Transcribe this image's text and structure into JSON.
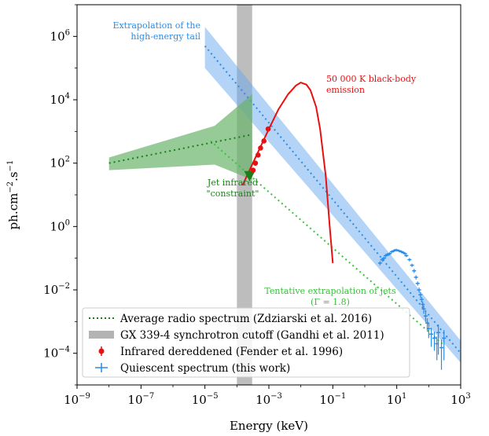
{
  "chart_data": {
    "type": "scatter",
    "xlabel": "Energy (keV)",
    "ylabel_base": "ph.cm",
    "ylabel_exp1": "−2",
    "ylabel_mid": ".s",
    "ylabel_exp2": "−1",
    "x_scale": "log",
    "y_scale": "log",
    "xlim": [
      1e-09,
      1000
    ],
    "ylim": [
      1e-05,
      10000000.0
    ],
    "x_ticks": [
      {
        "exp": -9,
        "base": "10",
        "label": "−9"
      },
      {
        "exp": -7,
        "base": "10",
        "label": "−7"
      },
      {
        "exp": -5,
        "base": "10",
        "label": "−5"
      },
      {
        "exp": -3,
        "base": "10",
        "label": "−3"
      },
      {
        "exp": -1,
        "base": "10",
        "label": "−1"
      },
      {
        "exp": 1,
        "base": "10",
        "label": "1"
      },
      {
        "exp": 3,
        "base": "10",
        "label": "3"
      }
    ],
    "y_ticks": [
      {
        "exp": 6,
        "base": "10",
        "label": "6"
      },
      {
        "exp": 4,
        "base": "10",
        "label": "4"
      },
      {
        "exp": 2,
        "base": "10",
        "label": "2"
      },
      {
        "exp": 0,
        "base": "10",
        "label": "0"
      },
      {
        "exp": -2,
        "base": "10",
        "label": "−2"
      },
      {
        "exp": -4,
        "base": "10",
        "label": "−4"
      }
    ],
    "colors": {
      "radio": "#1a7f1a",
      "radio_band": "#6ab36a",
      "jet_extrap": "#39c339",
      "cutoff": "#999999",
      "ir": "#e81010",
      "quiescent": "#2b8be6",
      "hard_tail_band": "#6aaaf0",
      "annot_blue": "#2b8be6",
      "annot_red": "#e81010",
      "annot_green": "#1a7f1a",
      "annot_lightgreen": "#39c339"
    },
    "synchrotron_cutoff": {
      "x": [
        0.0001,
        0.0003
      ]
    },
    "radio_spectrum": {
      "line": {
        "x": [
          1e-08,
          0.0003
        ],
        "y": [
          100,
          800
        ]
      },
      "band": {
        "x": [
          1e-08,
          2e-05,
          0.0003,
          0.0003,
          2e-05,
          1e-08
        ],
        "y": [
          150,
          1500,
          15000,
          30,
          90,
          60
        ]
      }
    },
    "jet_extrapolation": {
      "x": [
        1.5e-05,
        300
      ],
      "y": [
        500,
        0.00018
      ]
    },
    "jet_constraint": {
      "x": 0.00025,
      "y": 40
    },
    "hard_tail": {
      "line": {
        "x": [
          1e-05,
          1000
        ],
        "y": [
          500000,
          0.0001
        ]
      },
      "band": {
        "x": [
          1e-05,
          1000,
          1000,
          1e-05
        ],
        "y": [
          2000000,
          0.00025,
          5e-05,
          100000
        ]
      }
    },
    "blackbody": {
      "x": [
        0.00015,
        0.0003,
        0.0006,
        0.001,
        0.002,
        0.004,
        0.007,
        0.01,
        0.015,
        0.02,
        0.03,
        0.04,
        0.06,
        0.08,
        0.1
      ],
      "y": [
        20,
        90,
        400,
        1200,
        5000,
        15000,
        28000,
        35000,
        30000,
        20000,
        6000,
        1200,
        40,
        1,
        0.07
      ]
    },
    "infrared": {
      "x": [
        0.00032,
        0.00038,
        0.00046,
        0.00055,
        0.0007,
        0.00095
      ],
      "y": [
        60,
        100,
        180,
        300,
        500,
        1200
      ],
      "yerr_frac": 0.12
    },
    "quiescent": {
      "x": [
        3,
        3.5,
        4,
        4.5,
        5,
        5.5,
        6,
        7,
        8,
        9,
        10,
        12,
        14,
        16,
        18,
        20,
        25,
        30,
        35,
        40,
        45,
        50,
        55,
        60,
        65,
        70,
        80,
        90,
        100,
        120,
        150,
        180,
        200,
        250,
        300
      ],
      "y": [
        0.07,
        0.09,
        0.1,
        0.12,
        0.13,
        0.13,
        0.14,
        0.16,
        0.17,
        0.18,
        0.18,
        0.17,
        0.16,
        0.15,
        0.14,
        0.12,
        0.09,
        0.06,
        0.04,
        0.025,
        0.016,
        0.01,
        0.007,
        0.005,
        0.0035,
        0.0025,
        0.0015,
        0.0009,
        0.0006,
        0.0004,
        0.0003,
        0.0002,
        0.00045,
        0.00015,
        0.0003
      ],
      "yerr_frac": [
        0.15,
        0.15,
        0.12,
        0.12,
        0.1,
        0.1,
        0.1,
        0.1,
        0.1,
        0.1,
        0.1,
        0.1,
        0.1,
        0.1,
        0.1,
        0.1,
        0.12,
        0.12,
        0.14,
        0.15,
        0.15,
        0.18,
        0.2,
        0.2,
        0.25,
        0.3,
        0.35,
        0.4,
        0.5,
        0.6,
        0.6,
        0.7,
        0.8,
        0.8,
        0.8
      ]
    },
    "annotations": {
      "extrap_tail_1": "Extrapolation of the",
      "extrap_tail_2": "high-energy tail",
      "blackbody_1": "50 000 K black-body",
      "blackbody_2": "emission",
      "jet_ir_1": "Jet infrared",
      "jet_ir_2": "\"constraint\"",
      "tentative_1": "Tentative extrapolation of jets",
      "tentative_2": "(Γ = 1.8)"
    },
    "legend": {
      "placement": "lower-left",
      "entries": [
        {
          "key": "radio",
          "label": "Average radio spectrum (Zdziarski et al. 2016)"
        },
        {
          "key": "cutoff",
          "label": "GX 339-4 synchrotron cutoff (Gandhi et al. 2011)"
        },
        {
          "key": "ir",
          "label": "Infrared dereddened (Fender et al. 1996)"
        },
        {
          "key": "quiescent",
          "label": "Quiescent spectrum (this work)"
        }
      ]
    }
  }
}
